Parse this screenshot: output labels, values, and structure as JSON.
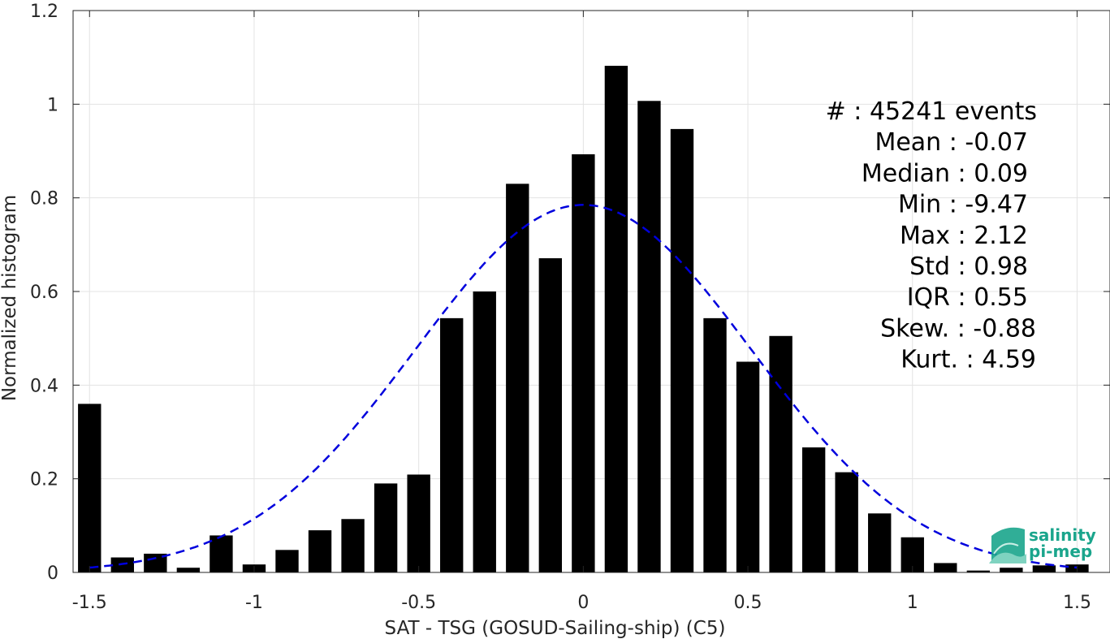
{
  "chart_data": {
    "type": "bar",
    "xlabel": "SAT - TSG (GOSUD-Sailing-ship) (C5)",
    "ylabel": "Normalized histogram",
    "xlim": [
      -1.55,
      1.6
    ],
    "ylim": [
      0,
      1.2
    ],
    "grid": true,
    "x_ticks": [
      "-1.5",
      "-1",
      "-0.5",
      "0",
      "0.5",
      "1",
      "1.5"
    ],
    "x_tick_values": [
      -1.5,
      -1,
      -0.5,
      0,
      0.5,
      1,
      1.5
    ],
    "y_ticks": [
      "0",
      "0.2",
      "0.4",
      "0.6",
      "0.8",
      "1",
      "1.2"
    ],
    "y_tick_values": [
      0,
      0.2,
      0.4,
      0.6,
      0.8,
      1,
      1.2
    ],
    "bar_width": 0.07,
    "bars": {
      "x": [
        -1.5,
        -1.4,
        -1.3,
        -1.2,
        -1.1,
        -1.0,
        -0.9,
        -0.8,
        -0.7,
        -0.6,
        -0.5,
        -0.4,
        -0.3,
        -0.2,
        -0.1,
        0.0,
        0.1,
        0.2,
        0.3,
        0.4,
        0.5,
        0.6,
        0.7,
        0.8,
        0.9,
        1.0,
        1.1,
        1.2,
        1.3,
        1.4,
        1.5
      ],
      "values": [
        0.36,
        0.032,
        0.04,
        0.01,
        0.079,
        0.017,
        0.048,
        0.09,
        0.114,
        0.19,
        0.209,
        0.543,
        0.6,
        0.83,
        0.671,
        0.893,
        1.082,
        1.007,
        0.947,
        0.543,
        0.45,
        0.505,
        0.267,
        0.214,
        0.126,
        0.075,
        0.02,
        0.004,
        0.01,
        0.015,
        0.017
      ],
      "color": "#000000"
    },
    "fit_curve": {
      "style": "dashed",
      "color": "#0000dd",
      "mean": 0.0,
      "std": 0.51,
      "peak": 0.785
    },
    "stats": [
      {
        "label": "#  : 45241 events"
      },
      {
        "label": "Mean : -0.07"
      },
      {
        "label": "Median : 0.09"
      },
      {
        "label": "Min : -9.47"
      },
      {
        "label": "Max : 2.12"
      },
      {
        "label": "Std : 0.98"
      },
      {
        "label": "IQR : 0.55"
      },
      {
        "label": "Skew. : -0.88"
      },
      {
        "label": "Kurt. : 4.59"
      }
    ]
  },
  "logo": {
    "line1": "salinity",
    "line2": "pi-mep",
    "color": "#1aa58c"
  }
}
